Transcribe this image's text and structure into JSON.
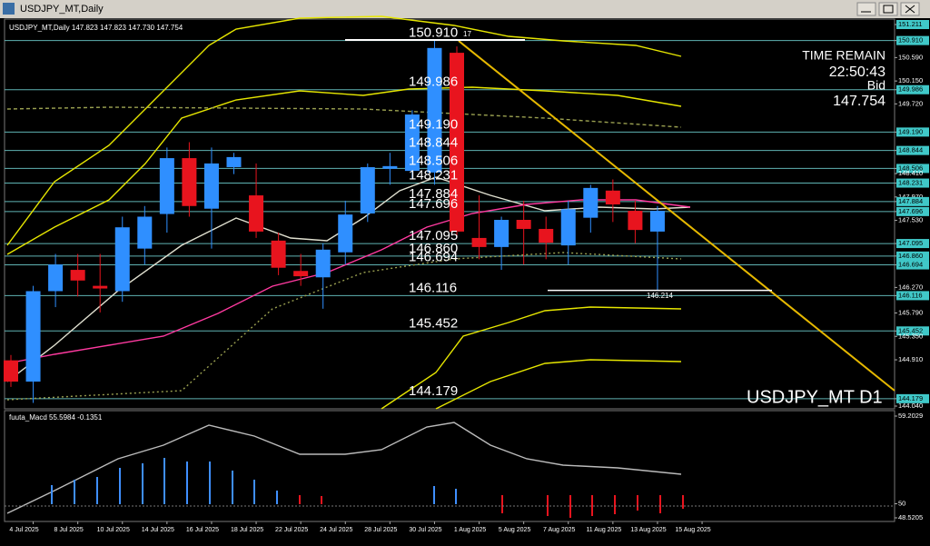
{
  "window": {
    "title": "USDJPY_MT,Daily"
  },
  "chart": {
    "info": "USDJPY_MT,Daily  147.823 147.823 147.730 147.754",
    "time_remain_label": "TIME REMAIN",
    "time_remain": "22:50:43",
    "bid_label": "Bid",
    "bid": 147.754,
    "symbol_label": "USDJPY_MT D1",
    "low_marker": 146.214,
    "high_marker_fragment": "17",
    "price_range": [
      144.04,
      151.211
    ],
    "price_ticks": [
      {
        "value": 151.211,
        "label": "151.211",
        "highlight": true
      },
      {
        "value": 150.91,
        "label": "150.910",
        "highlight": true
      },
      {
        "value": 150.59,
        "label": "150.590",
        "highlight": false
      },
      {
        "value": 150.15,
        "label": "150.150",
        "highlight": false
      },
      {
        "value": 149.986,
        "label": "149.986",
        "highlight": true
      },
      {
        "value": 149.72,
        "label": "149.720",
        "highlight": false
      },
      {
        "value": 149.19,
        "label": "149.190",
        "highlight": true
      },
      {
        "value": 148.844,
        "label": "148.844",
        "highlight": true
      },
      {
        "value": 148.506,
        "label": "148.506",
        "highlight": true
      },
      {
        "value": 148.41,
        "label": "148.410",
        "highlight": false
      },
      {
        "value": 148.231,
        "label": "148.231",
        "highlight": true
      },
      {
        "value": 147.97,
        "label": "147.970",
        "highlight": false
      },
      {
        "value": 147.884,
        "label": "147.884",
        "highlight": true
      },
      {
        "value": 147.696,
        "label": "147.696",
        "highlight": true
      },
      {
        "value": 147.53,
        "label": "147.530",
        "highlight": false
      },
      {
        "value": 147.095,
        "label": "147.095",
        "highlight": true
      },
      {
        "value": 146.86,
        "label": "146.860",
        "highlight": true
      },
      {
        "value": 146.694,
        "label": "146.694",
        "highlight": true
      },
      {
        "value": 146.27,
        "label": "146.270",
        "highlight": false
      },
      {
        "value": 146.116,
        "label": "146.116",
        "highlight": true
      },
      {
        "value": 145.79,
        "label": "145.790",
        "highlight": false
      },
      {
        "value": 145.452,
        "label": "145.452",
        "highlight": true
      },
      {
        "value": 145.35,
        "label": "145.350",
        "highlight": false
      },
      {
        "value": 144.91,
        "label": "144.910",
        "highlight": false
      },
      {
        "value": 144.179,
        "label": "144.179",
        "highlight": true
      },
      {
        "value": 144.04,
        "label": "144.040",
        "highlight": false
      }
    ],
    "levels": [
      {
        "value": 150.91,
        "label": "150.910"
      },
      {
        "value": 149.986,
        "label": "149.986"
      },
      {
        "value": 149.19,
        "label": "149.190"
      },
      {
        "value": 148.844,
        "label": "148.844"
      },
      {
        "value": 148.506,
        "label": "148.506"
      },
      {
        "value": 148.231,
        "label": "148.231"
      },
      {
        "value": 147.884,
        "label": "147.884"
      },
      {
        "value": 147.696,
        "label": "147.696"
      },
      {
        "value": 147.095,
        "label": "147.095"
      },
      {
        "value": 146.86,
        "label": "146.860"
      },
      {
        "value": 146.694,
        "label": "146.694"
      },
      {
        "value": 146.116,
        "label": "146.116"
      },
      {
        "value": 145.452,
        "label": "145.452"
      },
      {
        "value": 144.179,
        "label": "144.179"
      }
    ],
    "candles": [
      {
        "o": 144.9,
        "h": 145.0,
        "l": 144.4,
        "c": 144.5
      },
      {
        "o": 144.5,
        "h": 146.3,
        "l": 144.1,
        "c": 146.2
      },
      {
        "o": 146.2,
        "h": 146.9,
        "l": 145.9,
        "c": 146.7
      },
      {
        "o": 146.6,
        "h": 146.9,
        "l": 146.1,
        "c": 146.4
      },
      {
        "o": 146.3,
        "h": 146.9,
        "l": 145.8,
        "c": 146.25
      },
      {
        "o": 146.2,
        "h": 147.6,
        "l": 146.0,
        "c": 147.4
      },
      {
        "o": 147.0,
        "h": 147.8,
        "l": 146.7,
        "c": 147.6
      },
      {
        "o": 147.65,
        "h": 148.9,
        "l": 147.3,
        "c": 148.7
      },
      {
        "o": 148.7,
        "h": 149.0,
        "l": 147.6,
        "c": 147.8
      },
      {
        "o": 147.75,
        "h": 148.9,
        "l": 147.0,
        "c": 148.6
      },
      {
        "o": 148.53,
        "h": 148.8,
        "l": 148.4,
        "c": 148.72
      },
      {
        "o": 148.0,
        "h": 148.6,
        "l": 147.2,
        "c": 147.32
      },
      {
        "o": 147.15,
        "h": 147.3,
        "l": 146.5,
        "c": 146.64
      },
      {
        "o": 146.58,
        "h": 146.9,
        "l": 146.3,
        "c": 146.48
      },
      {
        "o": 146.46,
        "h": 147.1,
        "l": 145.87,
        "c": 146.98
      },
      {
        "o": 146.93,
        "h": 147.9,
        "l": 146.7,
        "c": 147.64
      },
      {
        "o": 147.66,
        "h": 148.6,
        "l": 147.5,
        "c": 148.53
      },
      {
        "o": 148.5,
        "h": 148.8,
        "l": 148.2,
        "c": 148.55
      },
      {
        "o": 148.46,
        "h": 149.6,
        "l": 148.3,
        "c": 149.52
      },
      {
        "o": 148.43,
        "h": 150.91,
        "l": 148.2,
        "c": 150.77
      },
      {
        "o": 150.68,
        "h": 150.8,
        "l": 147.2,
        "c": 147.32
      },
      {
        "o": 147.2,
        "h": 148.0,
        "l": 146.8,
        "c": 147.03
      },
      {
        "o": 147.03,
        "h": 147.6,
        "l": 146.6,
        "c": 147.54
      },
      {
        "o": 147.54,
        "h": 147.9,
        "l": 146.7,
        "c": 147.37
      },
      {
        "o": 147.37,
        "h": 147.6,
        "l": 146.8,
        "c": 147.11
      },
      {
        "o": 147.06,
        "h": 147.9,
        "l": 146.7,
        "c": 147.74
      },
      {
        "o": 147.58,
        "h": 148.2,
        "l": 147.3,
        "c": 148.14
      },
      {
        "o": 148.09,
        "h": 148.3,
        "l": 147.5,
        "c": 147.83
      },
      {
        "o": 147.71,
        "h": 147.9,
        "l": 147.1,
        "c": 147.35
      },
      {
        "o": 147.32,
        "h": 147.8,
        "l": 146.2,
        "c": 147.71
      }
    ],
    "x_labels": [
      "4 Jul 2025",
      "8 Jul 2025",
      "10 Jul 2025",
      "14 Jul 2025",
      "16 Jul 2025",
      "18 Jul 2025",
      "22 Jul 2025",
      "24 Jul 2025",
      "28 Jul 2025",
      "30 Jul 2025",
      "1 Aug 2025",
      "5 Aug 2025",
      "7 Aug 2025",
      "11 Aug 2025",
      "13 Aug 2025",
      "15 Aug 2025"
    ]
  },
  "macd": {
    "label": "fuuta_Macd 55.5984 -0.1351",
    "range": [
      48.5205,
      59.2029
    ],
    "ticks": [
      59.2029,
      50,
      48.5205
    ]
  }
}
